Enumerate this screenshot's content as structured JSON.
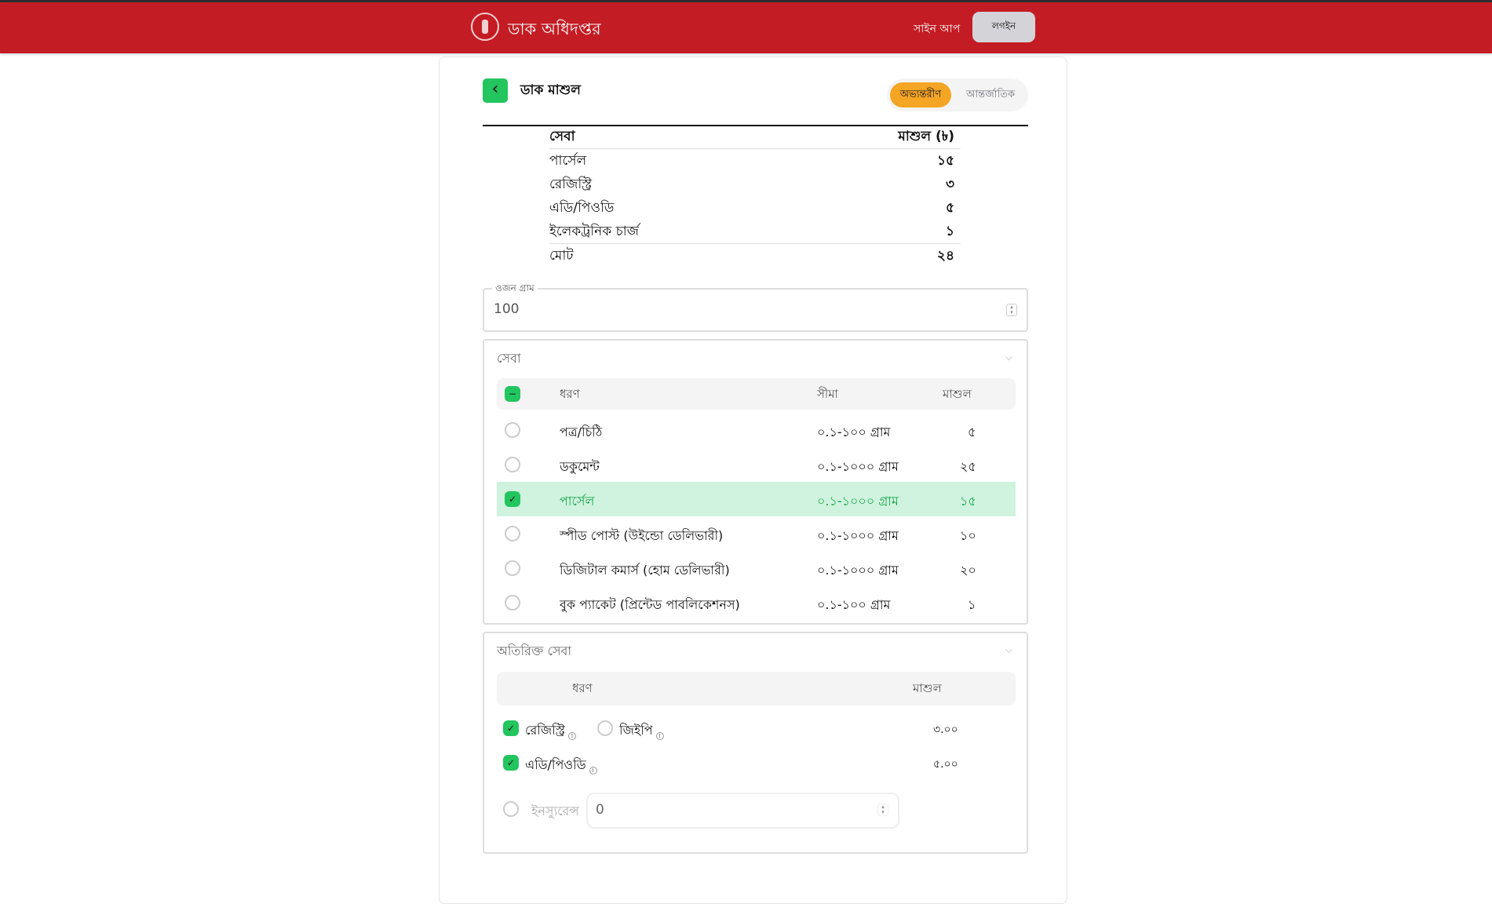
{
  "header": {
    "brand": "ডাক অধিদপ্তর",
    "signup": "সাইন আপ",
    "login": "লগইন"
  },
  "page": {
    "title": "ডাক মাশুল",
    "tabs": [
      {
        "label": "অভ্যন্তরীণ",
        "active": true
      },
      {
        "label": "আন্তর্জাতিক",
        "active": false
      }
    ]
  },
  "summary": {
    "headers": [
      "সেবা",
      "মাশুল (৳)"
    ],
    "rows": [
      [
        "পার্সেল",
        "১৫"
      ],
      [
        "রেজিস্ট্রি",
        "৩"
      ],
      [
        "এডি/পিওডি",
        "৫"
      ],
      [
        "ইলেকট্রনিক চার্জ",
        "১"
      ]
    ],
    "total": [
      "মোট",
      "২৪"
    ]
  },
  "weight": {
    "label": "ওজন গ্রাম",
    "value": "100"
  },
  "services": {
    "title": "সেবা",
    "headers": [
      "ধরণ",
      "সীমা",
      "মাশুল"
    ],
    "rows": [
      {
        "type": "পত্র/চিঠি",
        "limit": "০.১-১০০ গ্রাম",
        "fee": "৫",
        "checked": false
      },
      {
        "type": "ডকুমেন্ট",
        "limit": "০.১-১০০০ গ্রাম",
        "fee": "২৫",
        "checked": false
      },
      {
        "type": "পার্সেল",
        "limit": "০.১-১০০০ গ্রাম",
        "fee": "১৫",
        "checked": true
      },
      {
        "type": "স্পীড পোস্ট (উইন্ডো ডেলিভারী)",
        "limit": "০.১-১০০০ গ্রাম",
        "fee": "১০",
        "checked": false
      },
      {
        "type": "ডিজিটাল কমার্স (হোম ডেলিভারী)",
        "limit": "০.১-১০০০ গ্রাম",
        "fee": "২০",
        "checked": false
      },
      {
        "type": "বুক প্যাকেট (প্রিন্টেড পাবলিকেশনস)",
        "limit": "০.১-১০০ গ্রাম",
        "fee": "১",
        "checked": false
      }
    ]
  },
  "extra": {
    "title": "অতিরিক্ত সেবা",
    "headers": [
      "ধরণ",
      "মাশুল"
    ],
    "registry": "রেজিস্ট্রি",
    "gep": "জিইপি",
    "registry_fee": "৩.০০",
    "adpod": "এডি/পিওডি",
    "adpod_fee": "৫.০০",
    "insurance": "ইনস্যুরেন্স",
    "insurance_value": "0"
  },
  "colors": {
    "header": "#c41c24",
    "accent_green": "#22c55e",
    "active_tab": "#f5a524",
    "selected_row": "#cff3de"
  }
}
